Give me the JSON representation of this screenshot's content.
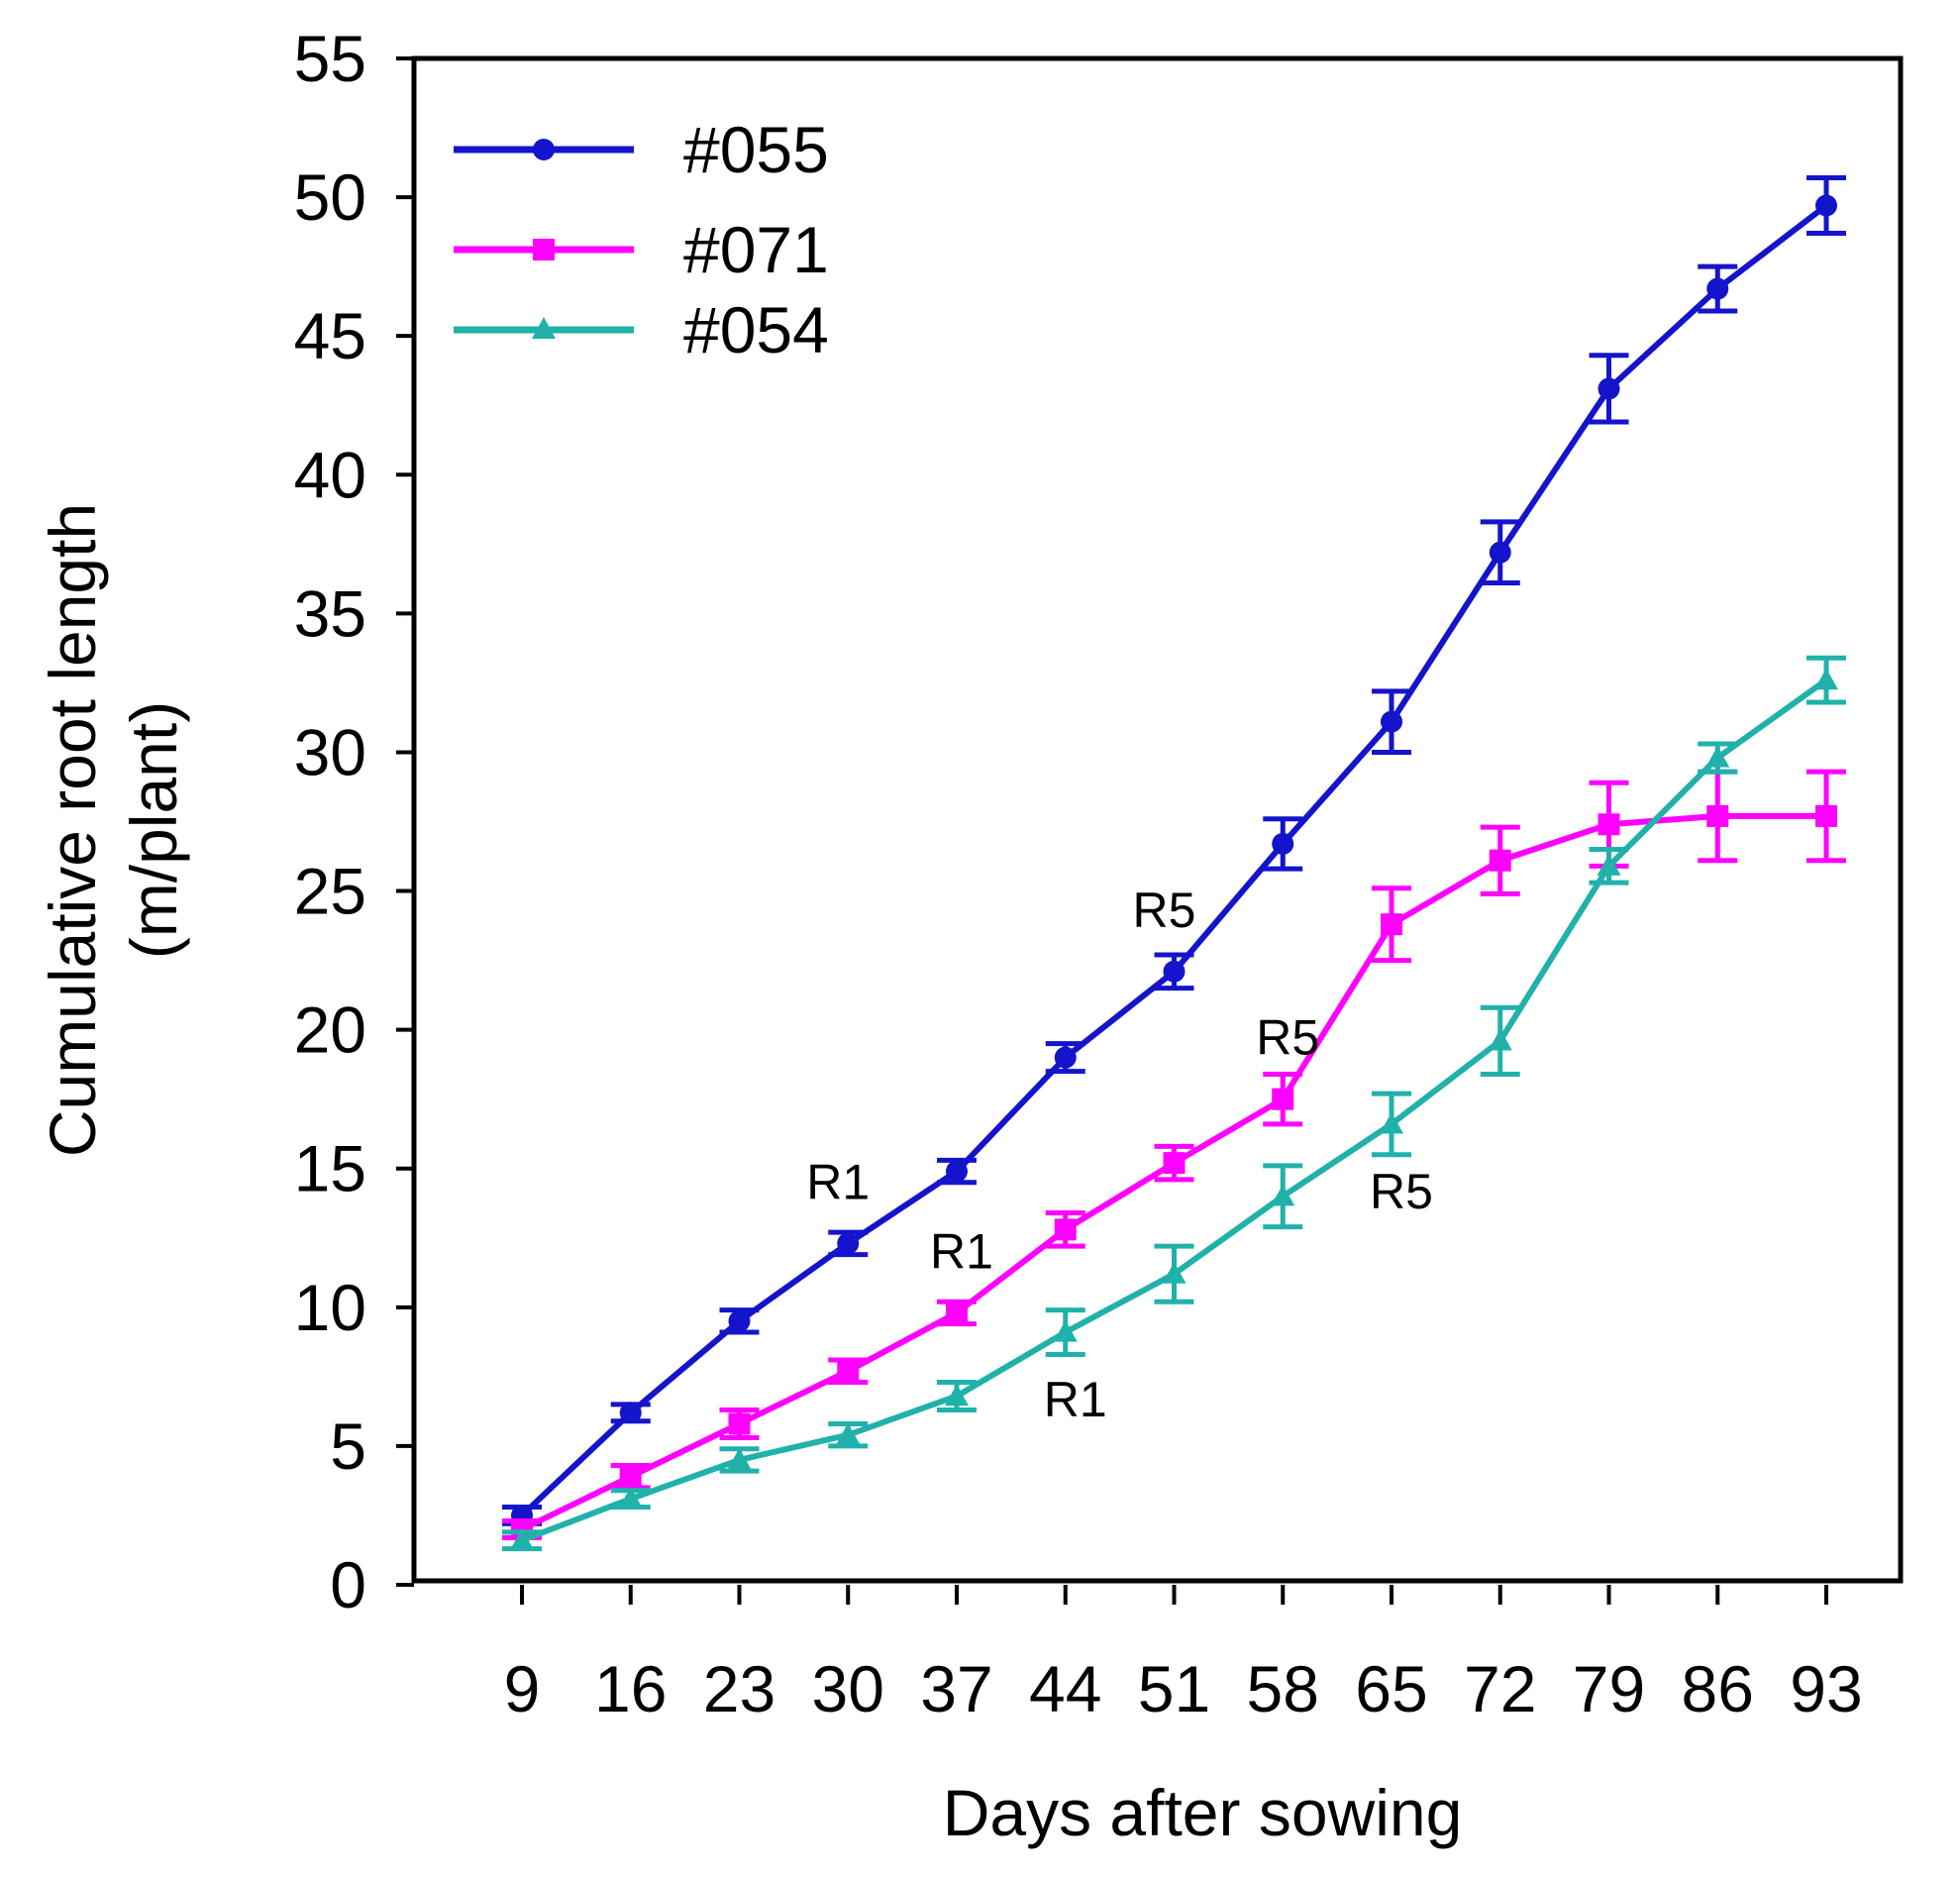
{
  "chart_data": {
    "type": "line",
    "title": "",
    "xlabel": "Days after sowing",
    "ylabel": [
      "Cumulative root length",
      "(m/plant)"
    ],
    "x": [
      9,
      16,
      23,
      30,
      37,
      44,
      51,
      58,
      65,
      72,
      79,
      86,
      93
    ],
    "x_tick_labels": [
      "9",
      "16",
      "23",
      "30",
      "37",
      "44",
      "51",
      "58",
      "65",
      "72",
      "79",
      "86",
      "93"
    ],
    "y_ticks": [
      0,
      5,
      10,
      15,
      20,
      25,
      30,
      35,
      40,
      45,
      50,
      55
    ],
    "y_tick_labels": [
      "0",
      "5",
      "10",
      "15",
      "20",
      "25",
      "30",
      "35",
      "40",
      "45",
      "50",
      "55"
    ],
    "ylim": [
      0,
      55
    ],
    "grid": false,
    "legend_position": "top-left",
    "series": [
      {
        "name": "#055",
        "color": "#1414CC",
        "marker": "circle",
        "values": [
          2.5,
          6.2,
          9.5,
          12.3,
          14.9,
          19.0,
          22.1,
          26.7,
          31.1,
          37.2,
          43.1,
          46.7,
          49.7
        ],
        "errors": [
          0.3,
          0.3,
          0.4,
          0.4,
          0.4,
          0.5,
          0.6,
          0.9,
          1.1,
          1.1,
          1.2,
          0.8,
          1.0
        ]
      },
      {
        "name": "#071",
        "color": "#FF00FF",
        "marker": "square",
        "values": [
          2.0,
          3.9,
          5.8,
          7.7,
          9.8,
          12.8,
          15.2,
          17.5,
          23.8,
          26.1,
          27.4,
          27.7,
          27.7
        ],
        "errors": [
          0.3,
          0.4,
          0.5,
          0.4,
          0.4,
          0.6,
          0.6,
          0.9,
          1.3,
          1.2,
          1.5,
          1.6,
          1.6
        ]
      },
      {
        "name": "#054",
        "color": "#20B2AA",
        "marker": "triangle",
        "values": [
          1.6,
          3.1,
          4.5,
          5.4,
          6.8,
          9.1,
          11.2,
          14.0,
          16.6,
          19.6,
          25.9,
          29.8,
          32.6
        ],
        "errors": [
          0.3,
          0.3,
          0.4,
          0.4,
          0.5,
          0.8,
          1.0,
          1.1,
          1.1,
          1.2,
          0.6,
          0.5,
          0.8
        ]
      }
    ],
    "annotations": [
      {
        "series": "#055",
        "x": 30,
        "text": "R1"
      },
      {
        "series": "#055",
        "x": 51,
        "text": "R5"
      },
      {
        "series": "#071",
        "x": 37,
        "text": "R1"
      },
      {
        "series": "#071",
        "x": 58,
        "text": "R5"
      },
      {
        "series": "#054",
        "x": 44,
        "text": "R1"
      },
      {
        "series": "#054",
        "x": 65,
        "text": "R5"
      }
    ]
  }
}
